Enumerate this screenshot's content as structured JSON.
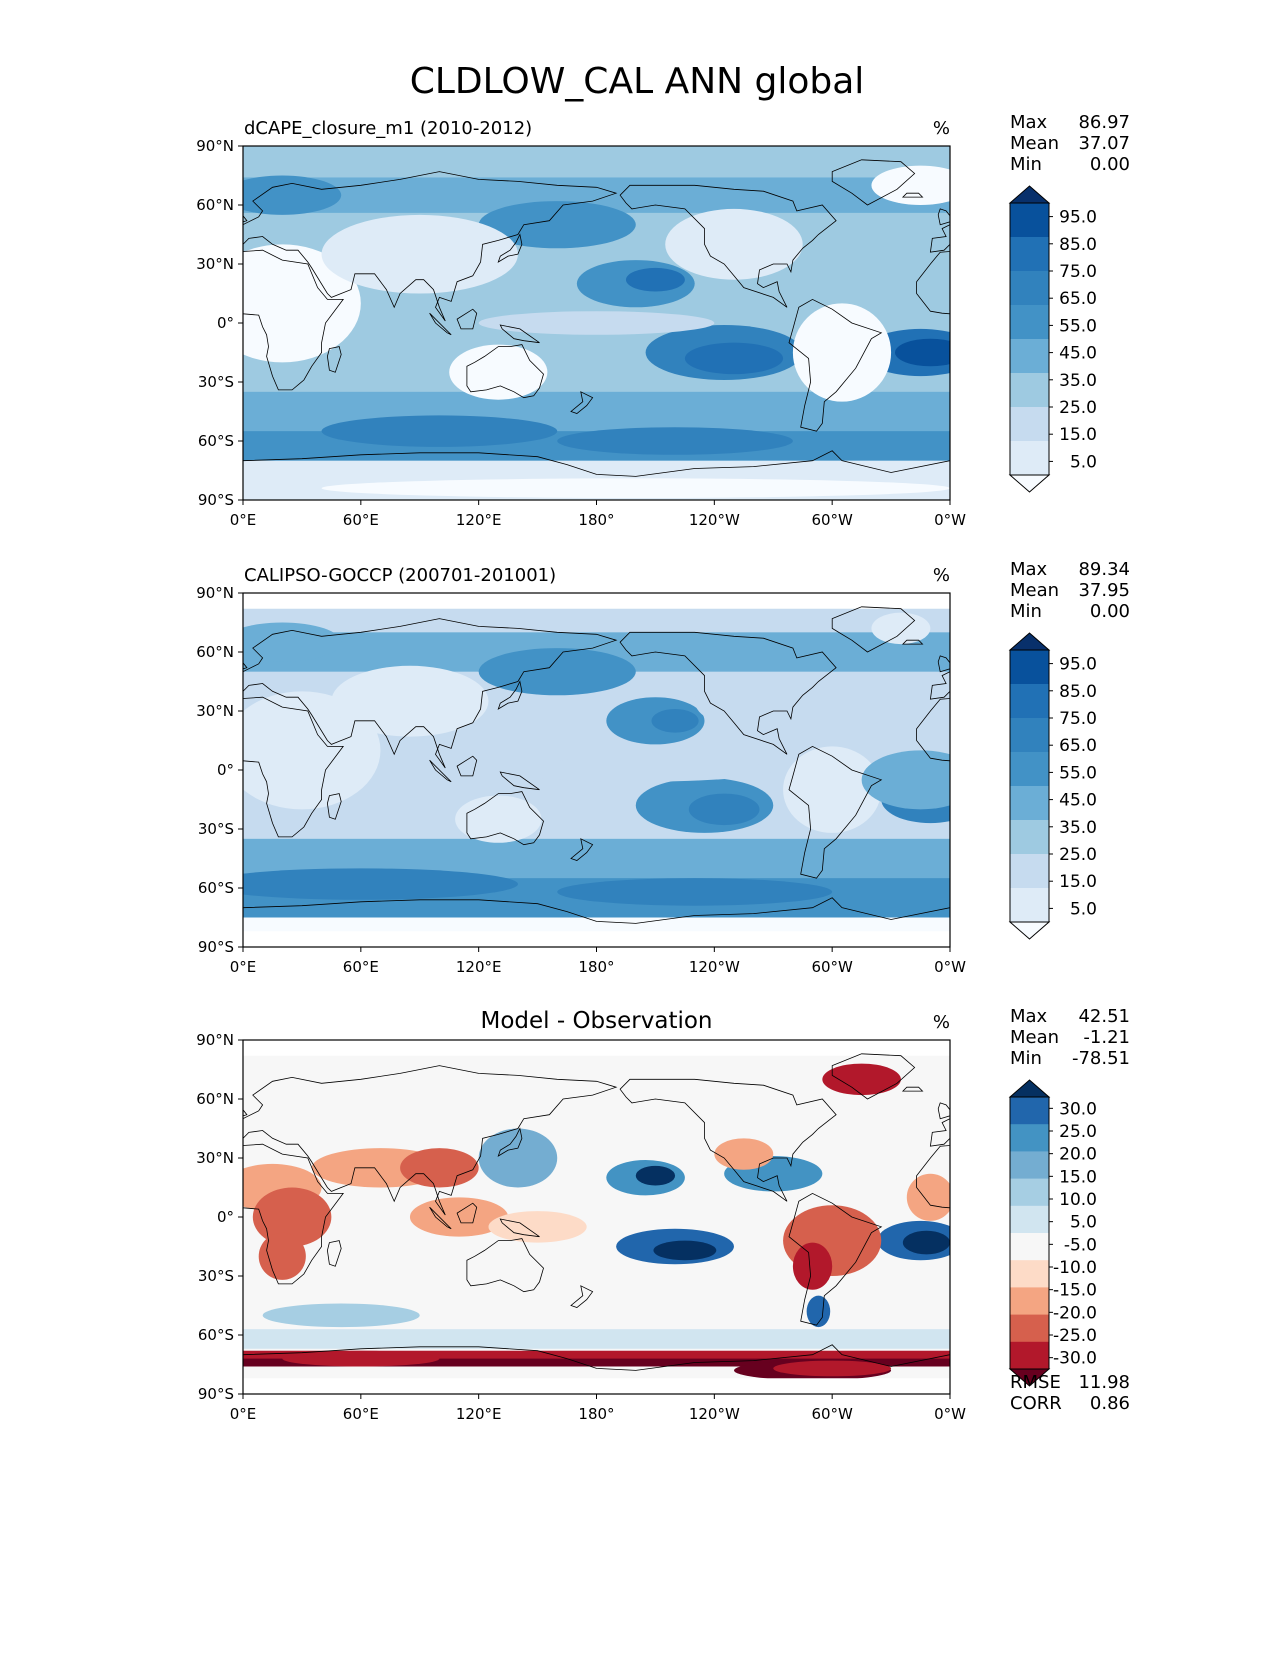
{
  "figure": {
    "title": "CLDLOW_CAL ANN global"
  },
  "axes": {
    "lat_ticks": [
      "90°N",
      "60°N",
      "30°N",
      "0°",
      "30°S",
      "60°S",
      "90°S"
    ],
    "lon_ticks": [
      "0°E",
      "60°E",
      "120°E",
      "180°",
      "120°W",
      "60°W",
      "0°W"
    ]
  },
  "panels": [
    {
      "id": "model",
      "title": "dCAPE_closure_m1 (2010-2012)",
      "title_position": "left",
      "units": "%",
      "stats": {
        "max_label": "Max",
        "max": "86.97",
        "mean_label": "Mean",
        "mean": "37.07",
        "min_label": "Min",
        "min": "0.00"
      },
      "colorbar": {
        "labels": [
          "95.0",
          "85.0",
          "75.0",
          "65.0",
          "55.0",
          "45.0",
          "35.0",
          "25.0",
          "15.0",
          "5.0"
        ],
        "colors": [
          "#08306b",
          "#08519c",
          "#2171b5",
          "#3182bd",
          "#4292c6",
          "#6baed6",
          "#9ecae1",
          "#c6dbef",
          "#deebf7",
          "#f7fbff"
        ]
      }
    },
    {
      "id": "obs",
      "title": "CALIPSO-GOCCP (200701-201001)",
      "title_position": "left",
      "units": "%",
      "stats": {
        "max_label": "Max",
        "max": "89.34",
        "mean_label": "Mean",
        "mean": "37.95",
        "min_label": "Min",
        "min": "0.00"
      },
      "colorbar": {
        "labels": [
          "95.0",
          "85.0",
          "75.0",
          "65.0",
          "55.0",
          "45.0",
          "35.0",
          "25.0",
          "15.0",
          "5.0"
        ],
        "colors": [
          "#08306b",
          "#08519c",
          "#2171b5",
          "#3182bd",
          "#4292c6",
          "#6baed6",
          "#9ecae1",
          "#c6dbef",
          "#deebf7",
          "#f7fbff"
        ]
      }
    },
    {
      "id": "diff",
      "title": "Model - Observation",
      "title_position": "center",
      "units": "%",
      "stats": {
        "max_label": "Max",
        "max": "42.51",
        "mean_label": "Mean",
        "mean": "-1.21",
        "min_label": "Min",
        "min": "-78.51"
      },
      "metrics": {
        "rmse_label": "RMSE",
        "rmse": "11.98",
        "corr_label": "CORR",
        "corr": "0.86"
      },
      "colorbar": {
        "labels": [
          "30.0",
          "25.0",
          "20.0",
          "15.0",
          "10.0",
          "5.0",
          "-5.0",
          "-10.0",
          "-15.0",
          "-20.0",
          "-25.0",
          "-30.0"
        ],
        "colors": [
          "#053061",
          "#2166ac",
          "#4393c3",
          "#74add1",
          "#a6cee3",
          "#d1e5f0",
          "#f7f7f7",
          "#fddbc7",
          "#f4a582",
          "#d6604d",
          "#b2182b",
          "#67001f"
        ]
      }
    }
  ]
}
